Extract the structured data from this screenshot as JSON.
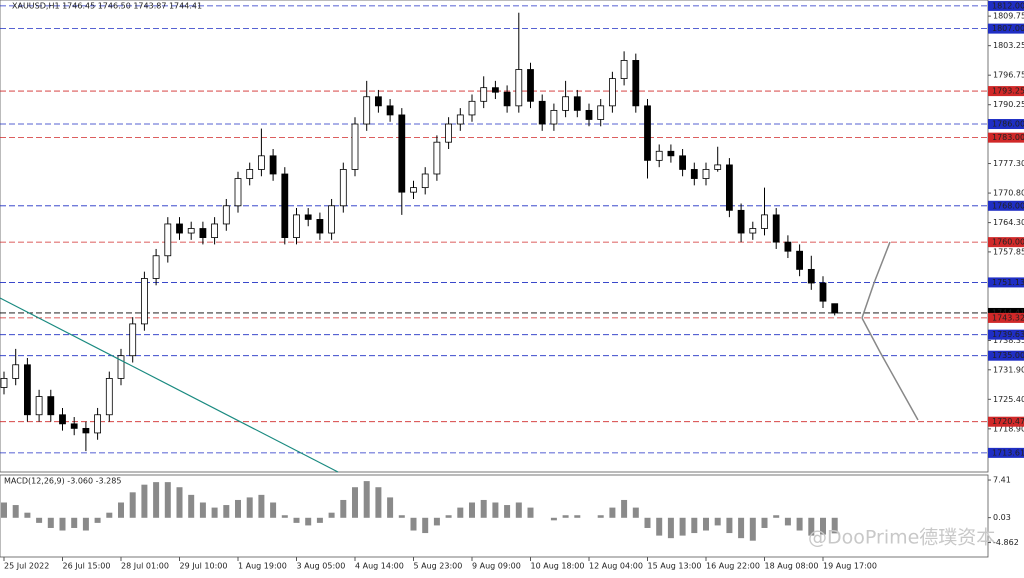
{
  "chart_data": [
    {
      "type": "candlestick",
      "title": "XAUUSD,H1  1746.45 1746.50 1743.87 1744.41",
      "open": [
        1728,
        1730,
        1733,
        1722,
        1726,
        1722,
        1720,
        1719,
        1718,
        1722,
        1730,
        1735,
        1742,
        1752,
        1757,
        1764,
        1762,
        1763,
        1761,
        1764,
        1768,
        1774,
        1776,
        1779,
        1775,
        1761,
        1766,
        1765,
        1762,
        1768,
        1776,
        1786,
        1792,
        1790,
        1788,
        1771,
        1772,
        1775,
        1782,
        1786,
        1788,
        1791,
        1794,
        1793,
        1790,
        1798,
        1791,
        1786,
        1789,
        1792,
        1789,
        1787,
        1790,
        1796,
        1800,
        1790,
        1778,
        1780,
        1779,
        1776,
        1774,
        1776,
        1777,
        1767,
        1762,
        1763,
        1766,
        1760,
        1758,
        1754,
        1751,
        1746.45
      ],
      "high": [
        1731.5,
        1736.5,
        1734.5,
        1727.5,
        1727.5,
        1723.5,
        1721.5,
        1720.5,
        1723.5,
        1731.5,
        1736.5,
        1743.5,
        1753.5,
        1758.5,
        1765.5,
        1765.5,
        1764.5,
        1764.5,
        1765.5,
        1769.5,
        1775.5,
        1777.5,
        1785,
        1780.5,
        1776.5,
        1767.5,
        1767.5,
        1766.5,
        1769.5,
        1777.5,
        1787.5,
        1795.5,
        1793.5,
        1791.5,
        1789.5,
        1773.5,
        1776.5,
        1783.5,
        1787.5,
        1789.5,
        1792.5,
        1796.5,
        1795.5,
        1794.5,
        1810.5,
        1799.5,
        1792.5,
        1790.5,
        1795.5,
        1793.5,
        1790.5,
        1791.5,
        1797.5,
        1802,
        1801.5,
        1791.5,
        1781.5,
        1781.5,
        1780.5,
        1777.5,
        1777.5,
        1781,
        1778.5,
        1768.5,
        1764.5,
        1772,
        1767.5,
        1761.5,
        1759.5,
        1757,
        1752.5,
        1746.5
      ],
      "low": [
        1726.5,
        1728.5,
        1720.5,
        1720.5,
        1720.5,
        1718.5,
        1717.5,
        1714,
        1716.5,
        1720.5,
        1728.5,
        1733.5,
        1740.5,
        1750.5,
        1755.5,
        1760.5,
        1760.5,
        1759.5,
        1759.5,
        1762.5,
        1766.5,
        1772.5,
        1774.5,
        1773.5,
        1759.5,
        1759.5,
        1763.5,
        1760.5,
        1760.5,
        1766.5,
        1774.5,
        1784.5,
        1788.5,
        1786.5,
        1766,
        1769.5,
        1770.5,
        1773.5,
        1780.5,
        1784.5,
        1786.5,
        1789.5,
        1791.5,
        1788.5,
        1788.5,
        1789.5,
        1784.5,
        1784.5,
        1787.5,
        1787.5,
        1785.5,
        1785.5,
        1788.5,
        1794.5,
        1788.5,
        1774,
        1776.5,
        1777.5,
        1774.5,
        1772.5,
        1772.5,
        1775.5,
        1765.5,
        1760,
        1760.5,
        1761.5,
        1758.5,
        1756.5,
        1752.5,
        1749.5,
        1745.5,
        1743.87
      ],
      "close": [
        1730,
        1733,
        1722,
        1726,
        1722,
        1720,
        1719,
        1718,
        1722,
        1730,
        1735,
        1742,
        1752,
        1757,
        1764,
        1762,
        1763,
        1761,
        1764,
        1768,
        1774,
        1776,
        1779,
        1775,
        1761,
        1766,
        1765,
        1762,
        1768,
        1776,
        1786,
        1792,
        1790,
        1788,
        1771,
        1772,
        1775,
        1782,
        1786,
        1788,
        1791,
        1794,
        1793,
        1790,
        1798,
        1791,
        1786,
        1789,
        1792,
        1789,
        1787,
        1790,
        1796,
        1800,
        1790,
        1778,
        1780,
        1779,
        1776,
        1774,
        1776,
        1777,
        1767,
        1762,
        1763,
        1766,
        1760,
        1758,
        1754,
        1751,
        1747,
        1744.41
      ],
      "up_color": "#ffffff",
      "down_color": "#000000",
      "xticks": [
        {
          "value": 0,
          "label": "25 Jul 2022"
        },
        {
          "value": 5,
          "label": "26 Jul 15:00"
        },
        {
          "value": 10,
          "label": "28 Jul 01:00"
        },
        {
          "value": 15,
          "label": "29 Jul 10:00"
        },
        {
          "value": 20,
          "label": "1 Aug 19:00"
        },
        {
          "value": 25,
          "label": "3 Aug 05:00"
        },
        {
          "value": 30,
          "label": "4 Aug 14:00"
        },
        {
          "value": 35,
          "label": "5 Aug 23:00"
        },
        {
          "value": 40,
          "label": "9 Aug 09:00"
        },
        {
          "value": 45,
          "label": "10 Aug 18:00"
        },
        {
          "value": 50,
          "label": "12 Aug 04:00"
        },
        {
          "value": 55,
          "label": "15 Aug 13:00"
        },
        {
          "value": 60,
          "label": "16 Aug 22:00"
        },
        {
          "value": 65,
          "label": "18 Aug 08:00"
        },
        {
          "value": 70,
          "label": "19 Aug 17:00"
        }
      ],
      "ylim": [
        1709.4,
        1813.3
      ],
      "yticks": [
        1809.75,
        1803.25,
        1796.75,
        1790.25,
        {
          "value": 1777.3,
          "label": "1777.30"
        },
        {
          "value": 1770.8,
          "label": "1770.80"
        },
        {
          "value": 1764.3,
          "label": "1764.30"
        },
        1757.85,
        1738.35,
        {
          "value": 1731.9,
          "label": "1731.90"
        },
        {
          "value": 1725.4,
          "label": "1725.40"
        },
        {
          "value": 1718.9,
          "label": "1718.90"
        }
      ],
      "levels": [
        {
          "value": 1812,
          "label": "1812.00",
          "color": "#1f2ec4"
        },
        {
          "value": 1807,
          "label": "1807.00",
          "color": "#1f2ec4"
        },
        {
          "value": 1793.25,
          "label": "1793.25",
          "color": "#d02828"
        },
        {
          "value": 1786,
          "label": "1786.00",
          "color": "#1f2ec4"
        },
        {
          "value": 1783,
          "label": "1783.00",
          "color": "#d02828"
        },
        {
          "value": 1768,
          "label": "1768.00",
          "color": "#1f2ec4"
        },
        {
          "value": 1760,
          "label": "1760.00",
          "color": "#d02828"
        },
        {
          "value": 1751.13,
          "label": "1751.13",
          "color": "#1f2ec4"
        },
        {
          "value": 1744.41,
          "label": "1744.41",
          "color": "#000000"
        },
        {
          "value": 1743.32,
          "label": "1743.32",
          "color": "#d02828"
        },
        {
          "value": 1739.63,
          "label": "1739.63",
          "color": "#1f2ec4"
        },
        {
          "value": 1735,
          "label": "1735.00",
          "color": "#1f2ec4"
        },
        {
          "value": 1720.47,
          "label": "1720.47",
          "color": "#d02828"
        },
        {
          "value": 1713.61,
          "label": "1713.61",
          "color": "#1f2ec4"
        }
      ]
    },
    {
      "type": "histogram",
      "title": "MACD(12,26,9) -3.060 -3.285",
      "values": [
        3,
        2.5,
        1,
        -1,
        -2,
        -2.5,
        -2,
        -2.5,
        -1,
        1,
        3,
        5,
        6.5,
        7,
        7,
        6,
        4.5,
        3,
        2,
        2.5,
        3.5,
        4,
        4.5,
        3,
        0.5,
        -1,
        -1.5,
        -1,
        1,
        3.5,
        6,
        7.2,
        6,
        4,
        0.5,
        -2.5,
        -3,
        -1.5,
        0.5,
        2,
        3,
        3.5,
        3,
        2.5,
        3,
        2,
        0,
        -0.5,
        0.5,
        0.5,
        0,
        0.5,
        2,
        3.5,
        2,
        -2,
        -3.5,
        -4,
        -3.5,
        -3,
        -2.5,
        -1.5,
        -3,
        -4,
        -4.5,
        -2,
        0.5,
        -1.5,
        -2.5,
        -3.5,
        -3.3,
        -3.06
      ],
      "color": "#8a8a8a",
      "ylim": [
        -7.7,
        8.4
      ],
      "yticks": [
        7.41,
        0.03,
        -4.862
      ]
    }
  ],
  "watermark": "@DooPrime德璞资本"
}
